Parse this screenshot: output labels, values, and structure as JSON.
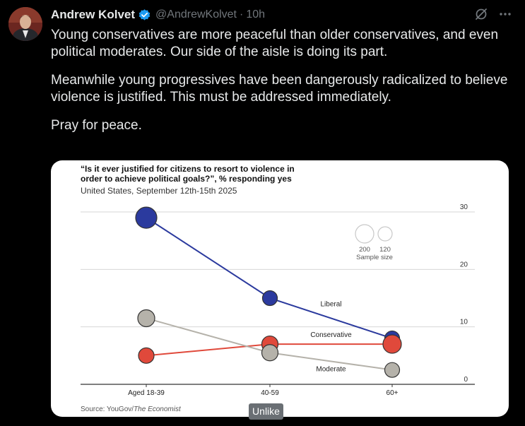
{
  "tweet": {
    "author_name": "Andrew Kolvet",
    "handle": "@AndrewKolvet",
    "separator": "·",
    "time": "10h",
    "paragraphs": [
      "Young conservatives are more peaceful than older conservatives, and even political moderates. Our side of the aisle is doing its part.",
      "Meanwhile young progressives have been dangerously radicalized to believe violence is justified. This must be addressed immediately.",
      "Pray for peace."
    ],
    "icons": [
      "verified-badge-icon",
      "grok-icon",
      "more-icon"
    ],
    "colors": {
      "background": "#000000",
      "text": "#e7e9ea",
      "muted": "#71767b",
      "verified": "#1d9bf0"
    }
  },
  "tooltip": {
    "label": "Unlike"
  },
  "chart_data": {
    "type": "line",
    "title": "“Is it ever justified for citizens to resort to violence in order to achieve political goals?”, % responding yes",
    "subtitle": "United States, September 12th-15th 2025",
    "source_prefix": "Source: YouGov/",
    "source_publication": "The Economist",
    "categories": [
      "Aged 18-39",
      "40-59",
      "60+"
    ],
    "ylim": [
      0,
      30
    ],
    "y_ticks": [
      0,
      10,
      20,
      30
    ],
    "series": [
      {
        "name": "Liberal",
        "color": "#2b3a9e",
        "values": [
          29,
          15,
          8
        ],
        "sample_sizes": [
          200,
          110,
          110
        ]
      },
      {
        "name": "Conservative",
        "color": "#e0493b",
        "values": [
          5,
          7,
          7
        ],
        "sample_sizes": [
          120,
          130,
          160
        ]
      },
      {
        "name": "Moderate",
        "color": "#b5b2aa",
        "values": [
          11.5,
          5.5,
          2.5
        ],
        "sample_sizes": [
          140,
          130,
          110
        ]
      }
    ],
    "size_legend": {
      "values": [
        "200",
        "120"
      ],
      "label": "Sample size"
    }
  }
}
